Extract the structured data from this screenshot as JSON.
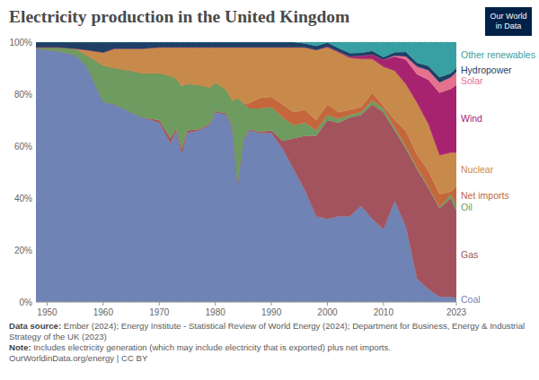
{
  "chart_data": {
    "type": "area",
    "stacked": true,
    "grid": true,
    "title": "Electricity production in the United Kingdom",
    "logo": [
      "Our World",
      "in Data"
    ],
    "source_label": "Data source:",
    "source": "Ember (2024); Energy Institute - Statistical Review of World Energy (2024); Department for Business, Energy & Industrial Strategy of the UK (2023)",
    "note_label": "Note:",
    "note": "Includes electricity generation (which may include electricity that is exported) plus net imports.",
    "footer": "OurWorldinData.org/energy | CC BY",
    "xlim": [
      1948,
      2023
    ],
    "xticks": [
      1950,
      1960,
      1970,
      1980,
      1990,
      2000,
      2010,
      2023
    ],
    "ylim": [
      0,
      100
    ],
    "yticks": [
      {
        "value": 0,
        "label": "0%"
      },
      {
        "value": 20,
        "label": "20%"
      },
      {
        "value": 40,
        "label": "40%"
      },
      {
        "value": 60,
        "label": "60%"
      },
      {
        "value": 80,
        "label": "80%"
      },
      {
        "value": 100,
        "label": "100%"
      }
    ],
    "x": [
      1948,
      1950,
      1952,
      1955,
      1957,
      1960,
      1962,
      1965,
      1967,
      1970,
      1972,
      1973,
      1974,
      1975,
      1977,
      1979,
      1980,
      1982,
      1983,
      1984,
      1985,
      1986,
      1988,
      1990,
      1992,
      1994,
      1996,
      1998,
      2000,
      2002,
      2004,
      2006,
      2008,
      2010,
      2012,
      2014,
      2016,
      2018,
      2020,
      2022,
      2023
    ],
    "series": [
      {
        "name": "Coal",
        "color": "#6f84b4",
        "values": [
          97.5,
          97,
          96.5,
          95,
          91,
          77,
          76,
          73,
          71,
          69,
          61,
          66,
          57,
          65,
          66,
          68,
          73,
          72,
          67,
          45,
          62,
          66,
          65,
          65,
          59,
          51,
          43,
          33,
          32,
          33,
          33,
          37,
          32,
          28,
          39,
          29,
          9,
          5,
          2,
          2,
          1.5
        ]
      },
      {
        "name": "Gas",
        "color": "#a3535d",
        "values": [
          0,
          0,
          0,
          0,
          0,
          0,
          0,
          0,
          0,
          1,
          2,
          1,
          2,
          1,
          0.5,
          0.5,
          0.5,
          0.5,
          0.5,
          0.5,
          0.5,
          0.5,
          0.5,
          1,
          3,
          12,
          21,
          31,
          38,
          36,
          38,
          35,
          44,
          45,
          27,
          30,
          42,
          39,
          34,
          38,
          33.5
        ]
      },
      {
        "name": "Oil",
        "color": "#6e9b5f",
        "values": [
          0.5,
          1,
          1.5,
          2.5,
          4,
          14,
          14,
          16,
          17,
          18,
          24,
          19,
          24,
          18,
          17,
          14,
          11,
          9,
          10,
          33,
          14,
          8,
          9,
          9,
          9,
          5,
          5,
          2,
          2,
          1.5,
          1,
          1,
          1.5,
          1.5,
          1,
          0.8,
          0.6,
          0.5,
          0.5,
          1.5,
          2.5
        ]
      },
      {
        "name": "Net imports",
        "color": "#c4673c",
        "values": [
          0,
          0,
          0,
          0,
          0,
          0,
          0,
          0,
          0,
          0,
          0,
          0,
          0,
          0,
          0,
          0,
          0,
          0,
          0,
          0,
          0,
          2,
          4,
          4,
          5,
          5,
          5,
          4,
          4,
          2.5,
          2,
          2,
          3,
          1,
          3,
          6,
          5,
          6,
          5,
          1,
          7
        ]
      },
      {
        "name": "Nuclear",
        "color": "#c88a4b",
        "values": [
          0,
          0,
          0,
          0,
          2,
          5,
          7.5,
          8.5,
          9.5,
          10,
          11,
          12,
          15,
          14,
          14.5,
          15.5,
          13.5,
          16.5,
          20.5,
          19.5,
          21.5,
          21.5,
          19.5,
          19,
          22,
          25,
          24,
          27,
          22,
          23,
          20,
          18.5,
          13,
          15,
          19,
          18,
          20,
          18,
          15,
          15,
          13
        ]
      },
      {
        "name": "Wind",
        "color": "#a8236f",
        "values": [
          0,
          0,
          0,
          0,
          0,
          0,
          0,
          0,
          0,
          0,
          0,
          0,
          0,
          0,
          0,
          0,
          0,
          0,
          0,
          0,
          0,
          0,
          0,
          0,
          0,
          0,
          0,
          0,
          0.3,
          0.4,
          0.5,
          1.2,
          1.8,
          2.7,
          5.5,
          9.5,
          11,
          17,
          24,
          24.5,
          26
        ]
      },
      {
        "name": "Solar",
        "color": "#e4728f",
        "values": [
          0,
          0,
          0,
          0,
          0,
          0,
          0,
          0,
          0,
          0,
          0,
          0,
          0,
          0,
          0,
          0,
          0,
          0,
          0,
          0,
          0,
          0,
          0,
          0,
          0,
          0,
          0,
          0,
          0,
          0,
          0,
          0,
          0,
          0,
          0.3,
          1.2,
          3,
          3.7,
          4,
          4.5,
          5
        ]
      },
      {
        "name": "Hydropower",
        "color": "#1f3f66",
        "values": [
          2,
          2,
          2,
          2.5,
          3,
          4,
          2.5,
          2.5,
          2.5,
          2,
          2,
          2,
          2,
          2,
          2,
          2,
          2,
          2,
          2,
          2,
          2,
          2,
          2,
          2,
          2,
          2,
          1.5,
          1.5,
          1.5,
          1.3,
          1.3,
          1.2,
          1.3,
          1,
          1.3,
          1.7,
          1.5,
          1.7,
          2,
          1.5,
          1.5
        ]
      },
      {
        "name": "Other renewables",
        "color": "#38a0a3",
        "values": [
          0,
          0,
          0,
          0,
          0,
          0,
          0,
          0,
          0,
          0,
          0,
          0,
          0,
          0,
          0,
          0,
          0,
          0,
          0,
          0,
          0,
          0,
          0,
          0,
          0,
          0,
          0.5,
          1.5,
          0.2,
          2.3,
          4.2,
          4.1,
          3.4,
          5.8,
          3.9,
          3.8,
          7.9,
          9.1,
          13.5,
          12,
          10
        ]
      }
    ]
  }
}
